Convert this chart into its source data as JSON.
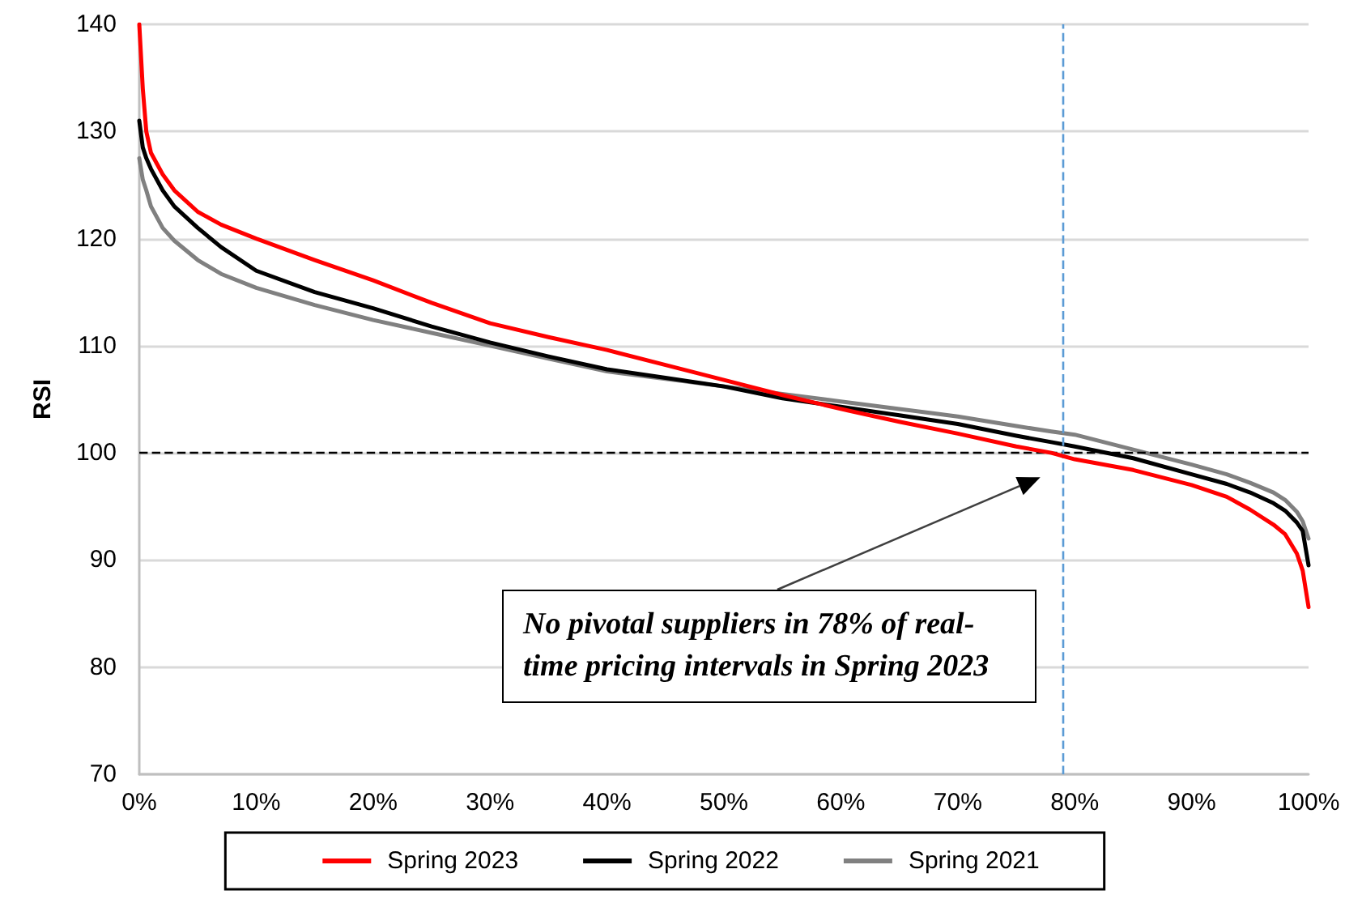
{
  "chart_data": {
    "type": "line",
    "ylabel": "RSI",
    "x": [
      0,
      0.3,
      0.6,
      1,
      2,
      3,
      5,
      7,
      10,
      15,
      20,
      25,
      30,
      35,
      40,
      45,
      50,
      55,
      60,
      65,
      70,
      75,
      78,
      80,
      85,
      90,
      93,
      95,
      97,
      98,
      99,
      99.5,
      100
    ],
    "series": [
      {
        "name": "Spring 2023",
        "color": "#ff0000",
        "values": [
          140,
          134,
          130,
          128,
          126,
          124.5,
          122.5,
          121.3,
          120,
          118,
          116.1,
          114,
          112.1,
          110.8,
          109.6,
          108.2,
          106.8,
          105.4,
          104.1,
          102.9,
          101.8,
          100.6,
          100,
          99.4,
          98.4,
          97,
          95.9,
          94.7,
          93.3,
          92.4,
          90.6,
          89,
          85.6
        ]
      },
      {
        "name": "Spring 2022",
        "color": "#000000",
        "values": [
          131,
          128.5,
          127.5,
          126.5,
          124.5,
          123,
          121,
          119.2,
          117,
          115,
          113.5,
          111.8,
          110.3,
          109,
          107.8,
          107,
          106.2,
          105.1,
          104.3,
          103.5,
          102.7,
          101.6,
          101,
          100.6,
          99.5,
          98,
          97.1,
          96.3,
          95.3,
          94.6,
          93.5,
          92.7,
          89.5
        ]
      },
      {
        "name": "Spring 2021",
        "color": "#808080",
        "values": [
          127.5,
          125.5,
          124.5,
          123,
          121,
          119.8,
          118,
          116.7,
          115.4,
          113.8,
          112.4,
          111.2,
          110,
          108.8,
          107.6,
          106.9,
          106.2,
          105.5,
          104.8,
          104.1,
          103.4,
          102.5,
          102,
          101.7,
          100.3,
          98.9,
          98,
          97.2,
          96.3,
          95.6,
          94.5,
          93.6,
          92
        ]
      }
    ],
    "xlim": [
      0,
      100
    ],
    "xticks": [
      {
        "value": 0,
        "label": "0%"
      },
      {
        "value": 10,
        "label": "10%"
      },
      {
        "value": 20,
        "label": "20%"
      },
      {
        "value": 30,
        "label": "30%"
      },
      {
        "value": 40,
        "label": "40%"
      },
      {
        "value": 50,
        "label": "50%"
      },
      {
        "value": 60,
        "label": "60%"
      },
      {
        "value": 70,
        "label": "70%"
      },
      {
        "value": 80,
        "label": "80%"
      },
      {
        "value": 90,
        "label": "90%"
      },
      {
        "value": 100,
        "label": "100%"
      }
    ],
    "ylim": [
      70,
      140
    ],
    "yticks": [
      70,
      80,
      90,
      100,
      110,
      120,
      130,
      140
    ],
    "ref_lines": [
      {
        "axis": "y",
        "value": 100,
        "color": "#000000",
        "line_style": "dashed"
      },
      {
        "axis": "x",
        "value": 79,
        "color": "#5b9bd5",
        "line_style": "dashed"
      }
    ],
    "annotations": [
      "No pivotal suppliers in 78% of real-time pricing intervals in Spring 2023"
    ],
    "grid": "y",
    "legend": "bottom",
    "marker": "none",
    "line_style": "solid"
  }
}
